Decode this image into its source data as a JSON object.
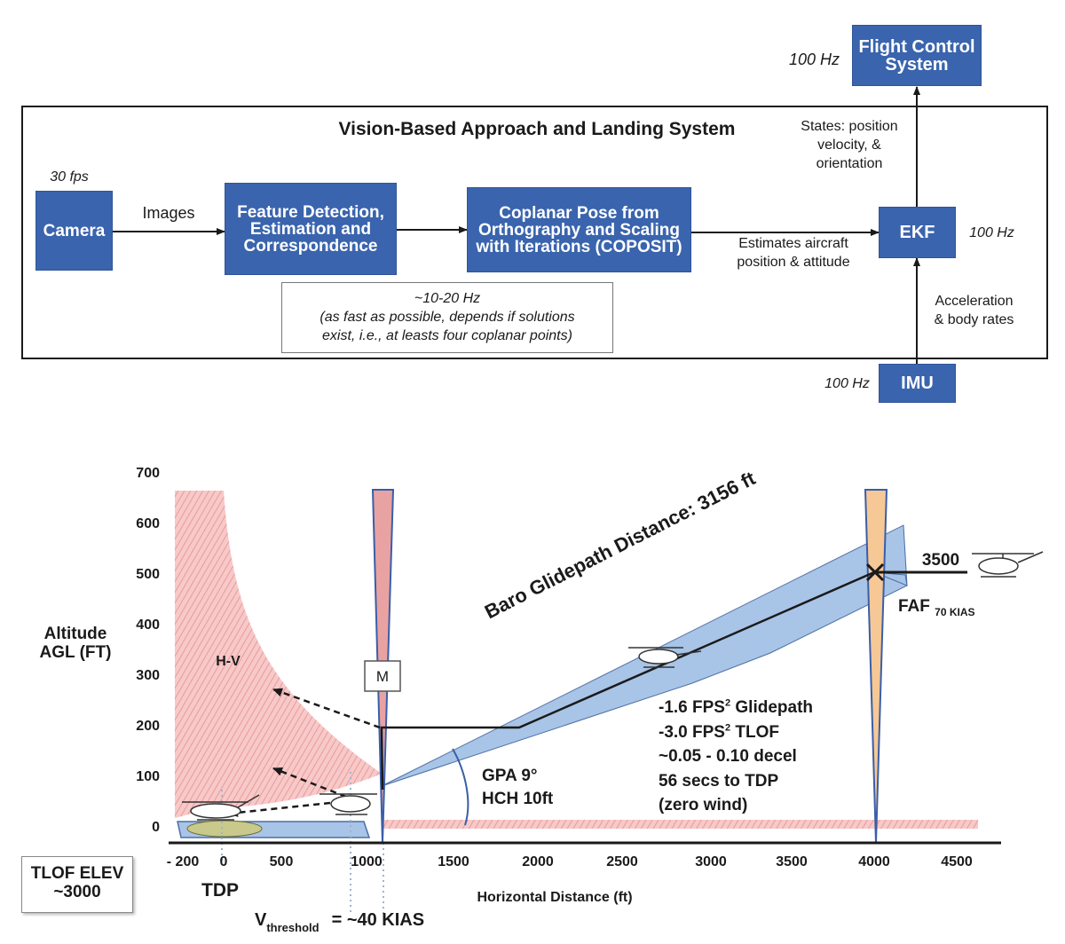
{
  "top_diagram": {
    "title": "Vision-Based Approach and Landing System",
    "boxes": {
      "camera": "Camera",
      "feature": [
        "Feature Detection,",
        "Estimation and",
        "Correspondence"
      ],
      "coposit": [
        "Coplanar Pose from",
        "Orthography and Scaling",
        "with Iterations (COPOSIT)"
      ],
      "ekf": "EKF",
      "flight_control": [
        "Flight Control",
        "System"
      ],
      "imu": "IMU"
    },
    "labels": {
      "camera_rate": "30 fps",
      "images": "Images",
      "fc_rate": "100 Hz",
      "states": [
        "States: position",
        "velocity, &",
        "orientation"
      ],
      "ekf_rate": "100 Hz",
      "estimates": [
        "Estimates aircraft",
        "position & attitude"
      ],
      "accel": [
        "Acceleration",
        "& body rates"
      ],
      "imu_rate": "100 Hz"
    },
    "note": [
      "~10-20 Hz",
      "(as fast as possible, depends if solutions",
      "exist, i.e., at leasts four coplanar points)"
    ]
  },
  "chart_data": {
    "type": "diagram",
    "y_axis": {
      "label": [
        "Altitude",
        "AGL (FT)"
      ],
      "ticks": [
        "700",
        "600",
        "500",
        "400",
        "300",
        "200",
        "100",
        "0"
      ],
      "range": [
        0,
        700
      ]
    },
    "x_axis": {
      "label": "Horizontal Distance (ft)",
      "ticks": [
        "- 200",
        "0",
        "500",
        "1000",
        "1500",
        "2000",
        "2500",
        "3000",
        "3500",
        "4000",
        "4500"
      ],
      "range": [
        -200,
        4500
      ]
    },
    "regions": {
      "hv": "H-V"
    },
    "marker_m": "M",
    "glidepath_label": "Baro Glidepath Distance: 3156 ft",
    "faf_label": "3500",
    "faf": {
      "main": "FAF",
      "sub": "70 KIAS"
    },
    "gpa": [
      "GPA 9°",
      "HCH 10ft"
    ],
    "notes": [
      {
        "pre": "-1.6 FPS",
        "sup": "2",
        "post": " Glidepath"
      },
      {
        "pre": "-3.0 FPS",
        "sup": "2",
        "post": " TLOF"
      },
      {
        "pre": "~0.05 - 0.10 decel",
        "sup": "",
        "post": ""
      },
      {
        "pre": "56 secs to TDP",
        "sup": "",
        "post": ""
      },
      {
        "pre": "(zero wind)",
        "sup": "",
        "post": ""
      }
    ],
    "tlof": [
      "TLOF ELEV",
      "~3000"
    ],
    "tdp": "TDP",
    "vthreshold": {
      "v": "V",
      "sub": "threshold",
      "value": "= ~40 KIAS"
    }
  }
}
